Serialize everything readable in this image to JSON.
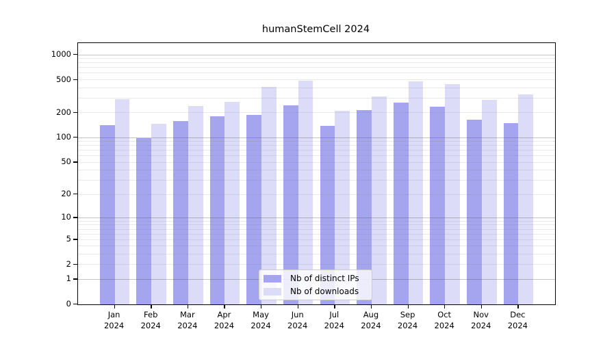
{
  "chart_data": {
    "type": "bar",
    "title": "humanStemCell 2024",
    "categories": [
      "Jan",
      "Feb",
      "Mar",
      "Apr",
      "May",
      "Jun",
      "Jul",
      "Aug",
      "Sep",
      "Oct",
      "Nov",
      "Dec"
    ],
    "category_year": "2024",
    "series": [
      {
        "name": "Nb of distinct IPs",
        "color": "#a5a5ef",
        "values": [
          141,
          98,
          158,
          180,
          190,
          244,
          140,
          217,
          265,
          236,
          164,
          149
        ]
      },
      {
        "name": "Nb of downloads",
        "color": "#dcdcf8",
        "values": [
          291,
          148,
          239,
          268,
          412,
          484,
          212,
          314,
          480,
          440,
          286,
          331
        ]
      }
    ],
    "y_axis": {
      "scale": "log10(value+1)",
      "ticks": [
        0,
        1,
        2,
        5,
        10,
        20,
        50,
        100,
        200,
        500,
        1000
      ],
      "ylim": [
        0,
        1380
      ],
      "major_gridlines": [
        1,
        10,
        100,
        1000
      ],
      "minor_gridlines": [
        2,
        3,
        4,
        5,
        6,
        7,
        8,
        9,
        20,
        30,
        40,
        50,
        60,
        70,
        80,
        90,
        200,
        300,
        400,
        500,
        600,
        700,
        800,
        900
      ]
    },
    "x_axis": {
      "tick_labels_line1": [
        "Jan",
        "Feb",
        "Mar",
        "Apr",
        "May",
        "Jun",
        "Jul",
        "Aug",
        "Sep",
        "Oct",
        "Nov",
        "Dec"
      ],
      "tick_labels_line2": "2024"
    },
    "legend": {
      "position": "bottom-center",
      "entries": [
        "Nb of distinct IPs",
        "Nb of downloads"
      ]
    },
    "grid": true
  },
  "colors": {
    "axis": "#000000",
    "major_grid": "#c4c4c4",
    "minor_grid": "#e9e9e9",
    "background": "#ffffff",
    "legend_border": "#cccccc"
  }
}
